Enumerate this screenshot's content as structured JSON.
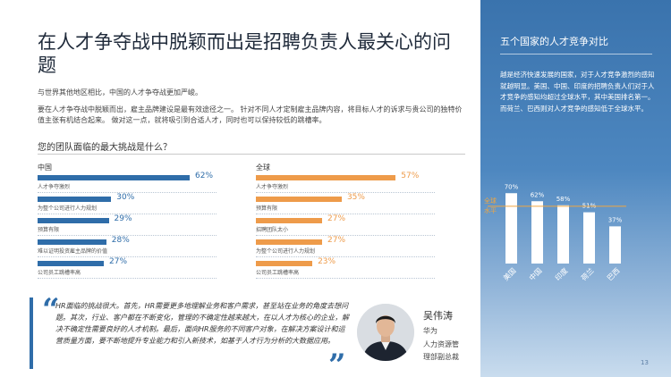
{
  "title": "在人才争夺战中脱颖而出是招聘负责人最关心的问题",
  "intro1": "与世界其他地区相比，中国的人才争夺战更加严峻。",
  "intro2": "要在人才争夺战中脱颖而出，雇主品牌建设是最有效途径之一。 针对不同人才定制雇主品牌内容，将目标人才的诉求与贵公司的独特价值主张有机结合起来。 做对这一点，就将吸引到合适人才，同时也可以保持较低的跳槽率。",
  "question": "您的团队面临的最大挑战是什么？",
  "china": {
    "label": "中国",
    "color": "#2f6da9",
    "items": [
      {
        "value": 62,
        "label": "62%",
        "caption": "人才争夺激烈"
      },
      {
        "value": 30,
        "label": "30%",
        "caption": "为整个公司进行人力规划"
      },
      {
        "value": 29,
        "label": "29%",
        "caption": "预算有限"
      },
      {
        "value": 28,
        "label": "28%",
        "caption": "难以证明投资雇主品牌的价值"
      },
      {
        "value": 27,
        "label": "27%",
        "caption": "公司员工跳槽率高"
      }
    ]
  },
  "global": {
    "label": "全球",
    "color": "#ee9b4a",
    "items": [
      {
        "value": 57,
        "label": "57%",
        "caption": "人才争夺激烈"
      },
      {
        "value": 35,
        "label": "35%",
        "caption": "预算有限"
      },
      {
        "value": 27,
        "label": "27%",
        "caption": "招聘团队太小"
      },
      {
        "value": 27,
        "label": "27%",
        "caption": "为整个公司进行人力规划"
      },
      {
        "value": 23,
        "label": "23%",
        "caption": "公司员工跳槽率高"
      }
    ]
  },
  "quote": {
    "open": "“",
    "close": "”",
    "text": "HR面临的挑战很大。首先，HR需要更多地理解业务和客户需求，甚至站在业务的角度去想问题。其次，行业、客户都在不断变化，管理的不确定性越来越大，在以人才为核心的企业，解决不确定性需要良好的人才机制。最后，面向HR服务的不同客户对象，在解决方案设计和运营质量方面，要不断地提升专业能力和引入新技术，如基于人才行为分析的大数据应用。",
    "name": "吴伟涛",
    "company": "华为",
    "role1": "人力资源管",
    "role2": "理部副总裁"
  },
  "sidebar": {
    "title": "五个国家的人才竞争对比",
    "text": "越是经济快速发展的国家，对于人才竞争激烈的感知就越明显。美国、中国、印度的招聘负责人们对于人才竞争的感知均超过全球水平，其中美国排名第一。而荷兰、巴西则对人才竞争的感知低于全球水平。"
  },
  "chart_data": {
    "type": "bar",
    "title": "五个国家的人才竞争对比",
    "categories": [
      "美国",
      "中国",
      "印度",
      "荷兰",
      "巴西"
    ],
    "values": [
      70,
      62,
      58,
      51,
      37
    ],
    "value_labels": [
      "70%",
      "62%",
      "58%",
      "51%",
      "37%"
    ],
    "reference": {
      "label": "全球水平",
      "value": 57
    },
    "ylim": [
      0,
      80
    ],
    "grid": false,
    "bar_color": "#ffffff",
    "reference_color": "#f0a640"
  },
  "page_number": "13"
}
